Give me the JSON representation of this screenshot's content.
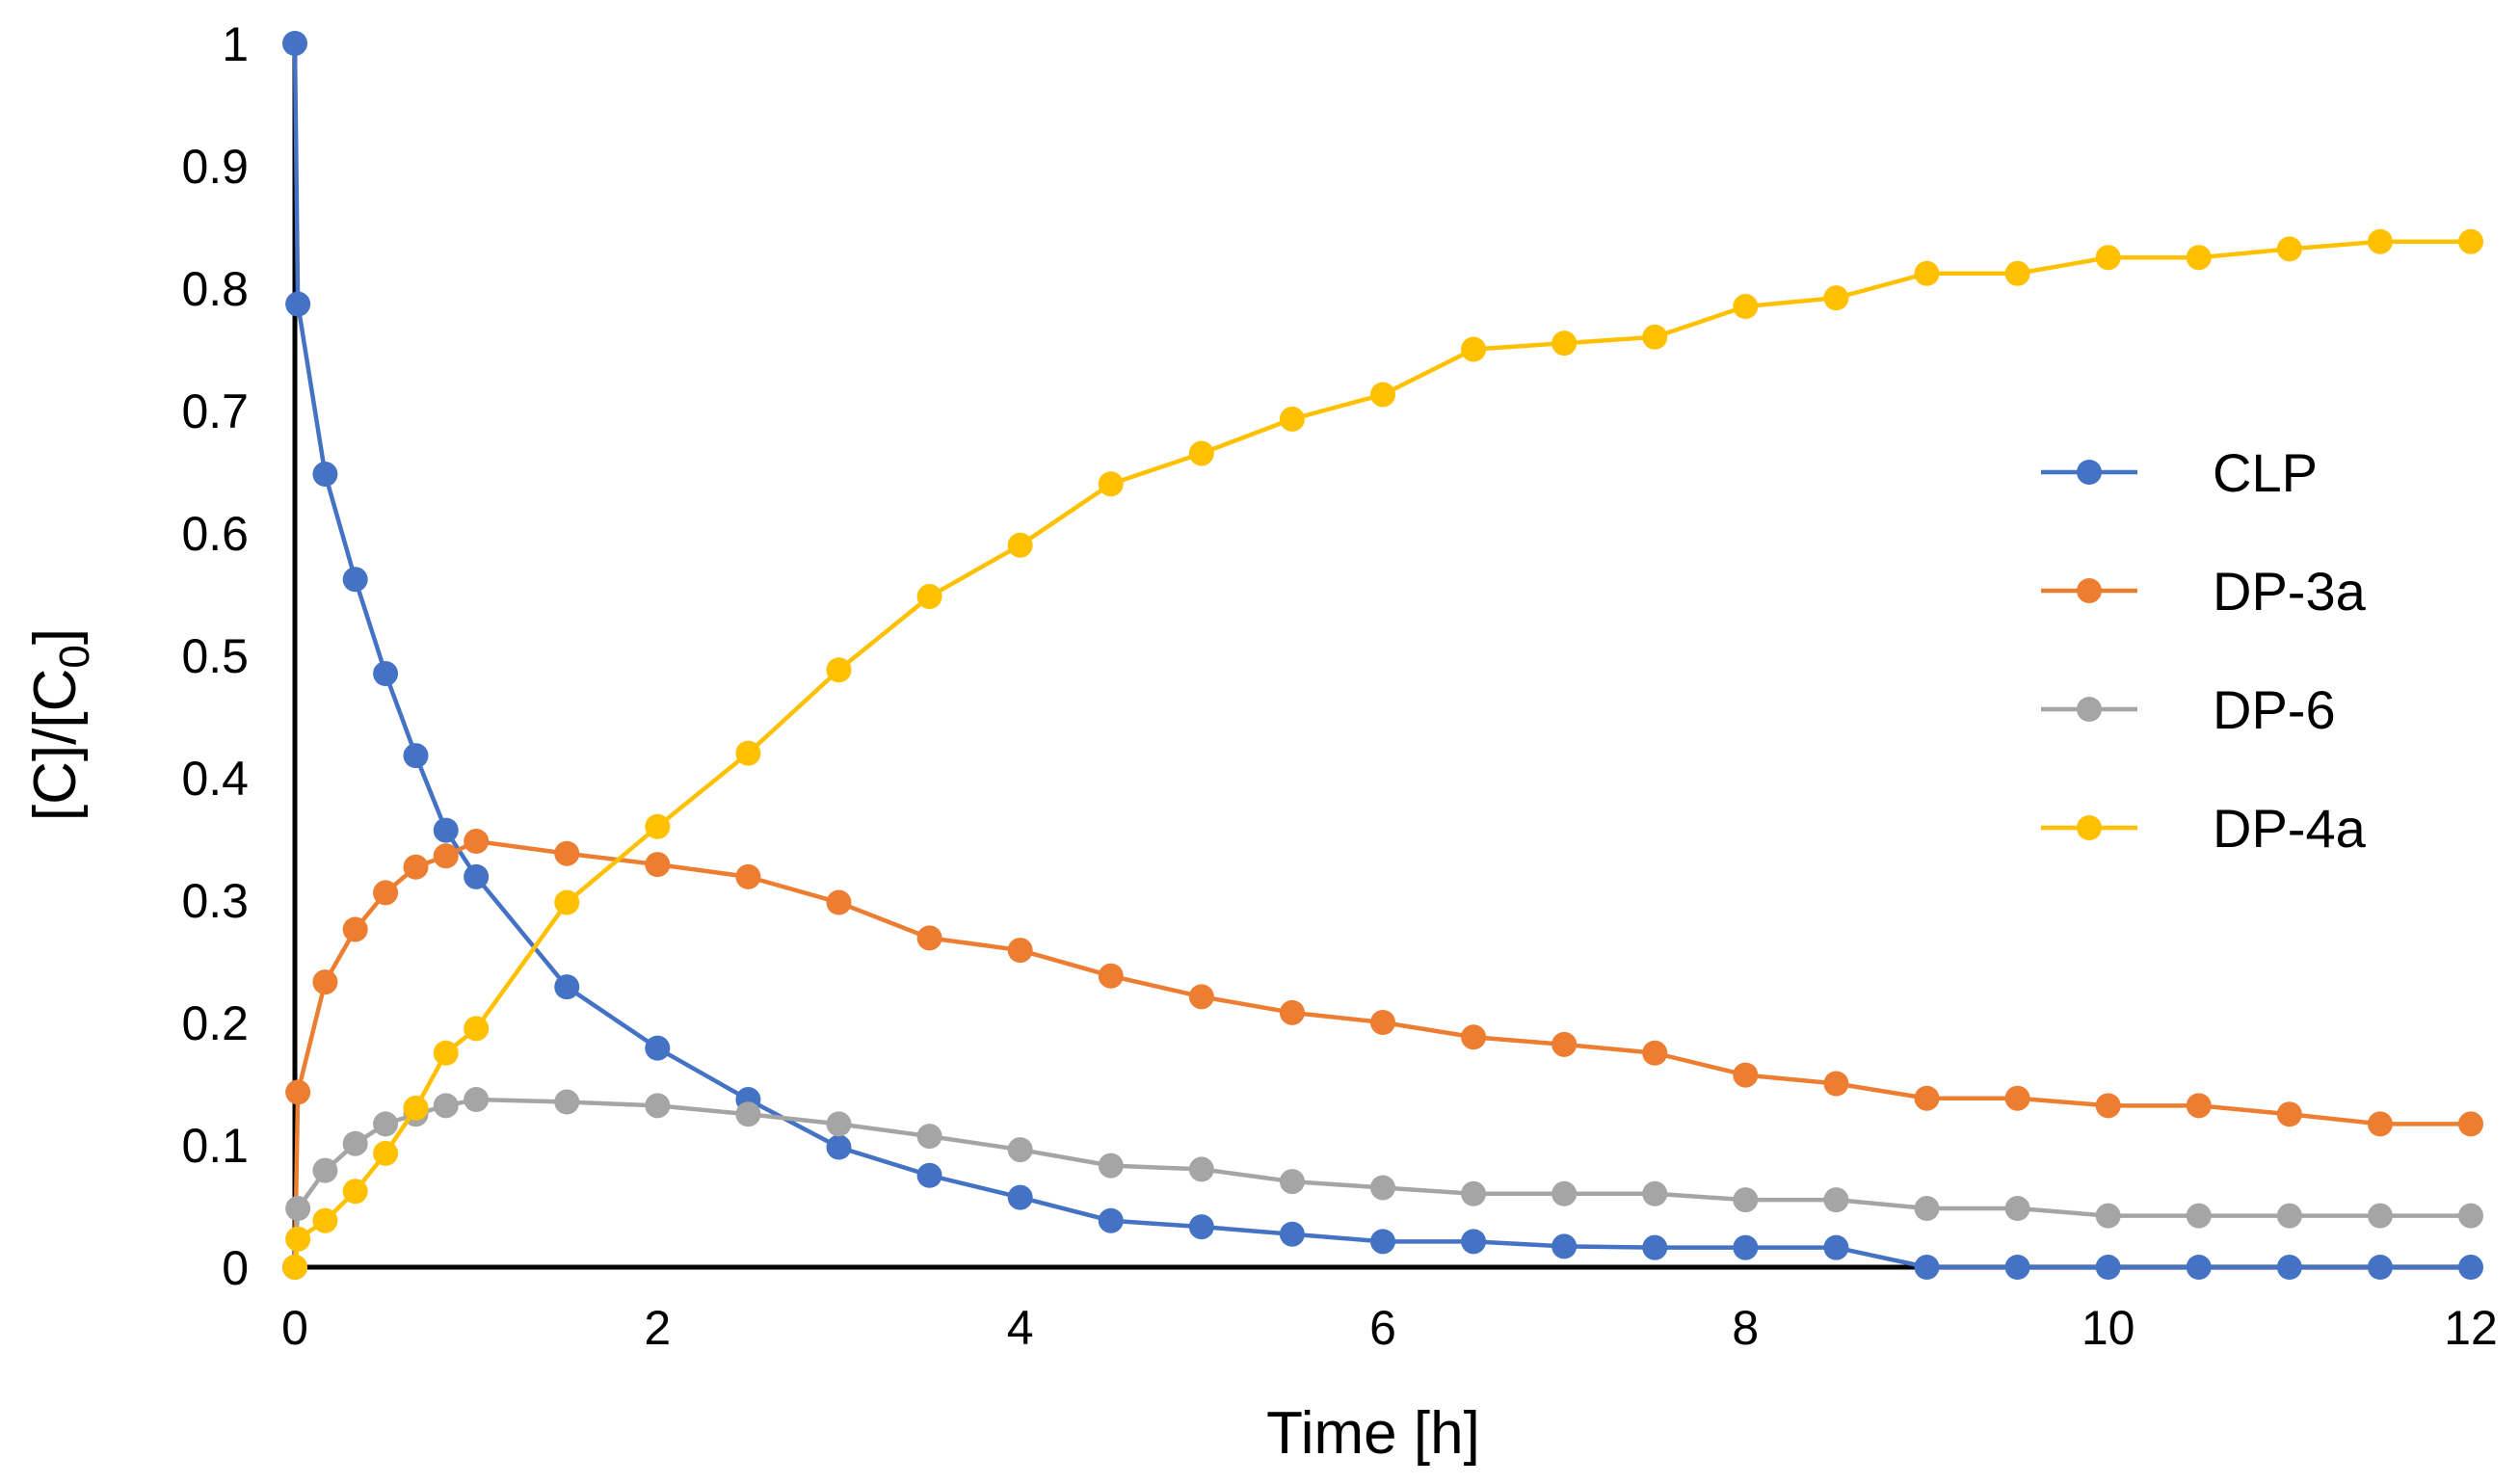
{
  "chart_data": {
    "type": "line",
    "title": "",
    "xlabel": "Time [h]",
    "ylabel_parts": [
      "[C]/[C",
      "0",
      "]"
    ],
    "xlim": [
      0,
      12
    ],
    "ylim": [
      0,
      1
    ],
    "x_ticks": [
      0,
      2,
      4,
      6,
      8,
      10,
      12
    ],
    "y_ticks": [
      0,
      0.1,
      0.2,
      0.3,
      0.4,
      0.5,
      0.6,
      0.7,
      0.8,
      0.9,
      1
    ],
    "grid": false,
    "legend_position": "right",
    "x": [
      0,
      0.0167,
      0.167,
      0.333,
      0.5,
      0.667,
      0.833,
      1,
      1.5,
      2,
      2.5,
      3,
      3.5,
      4,
      4.5,
      5,
      5.5,
      6,
      6.5,
      7,
      7.5,
      8,
      8.5,
      9,
      9.5,
      10,
      10.5,
      11,
      11.5,
      12
    ],
    "series": [
      {
        "name": "CLP",
        "color": "#4472C4",
        "values": [
          1.0,
          0.787,
          0.648,
          0.562,
          0.485,
          0.418,
          0.357,
          0.319,
          0.229,
          0.179,
          0.137,
          0.098,
          0.075,
          0.057,
          0.038,
          0.033,
          0.027,
          0.021,
          0.021,
          0.017,
          0.016,
          0.016,
          0.016,
          0.0,
          0.0,
          0.0,
          0.0,
          0.0,
          0.0,
          0.0
        ]
      },
      {
        "name": "DP-3a",
        "color": "#ED7D31",
        "values": [
          0.0,
          0.143,
          0.233,
          0.276,
          0.306,
          0.327,
          0.336,
          0.348,
          0.338,
          0.329,
          0.319,
          0.298,
          0.269,
          0.259,
          0.238,
          0.221,
          0.208,
          0.2,
          0.188,
          0.182,
          0.175,
          0.157,
          0.15,
          0.138,
          0.138,
          0.132,
          0.132,
          0.125,
          0.117,
          0.117
        ]
      },
      {
        "name": "DP-6",
        "color": "#A5A5A5",
        "values": [
          0.0,
          0.048,
          0.079,
          0.101,
          0.117,
          0.125,
          0.132,
          0.137,
          0.135,
          0.132,
          0.125,
          0.117,
          0.107,
          0.096,
          0.083,
          0.08,
          0.07,
          0.065,
          0.06,
          0.06,
          0.06,
          0.055,
          0.055,
          0.048,
          0.048,
          0.042,
          0.042,
          0.042,
          0.042,
          0.042
        ]
      },
      {
        "name": "DP-4a",
        "color": "#FFC000",
        "values": [
          0.0,
          0.023,
          0.038,
          0.062,
          0.093,
          0.13,
          0.175,
          0.195,
          0.298,
          0.36,
          0.42,
          0.488,
          0.548,
          0.59,
          0.64,
          0.665,
          0.693,
          0.713,
          0.75,
          0.755,
          0.76,
          0.785,
          0.792,
          0.812,
          0.812,
          0.825,
          0.825,
          0.832,
          0.838,
          0.838
        ]
      }
    ]
  }
}
